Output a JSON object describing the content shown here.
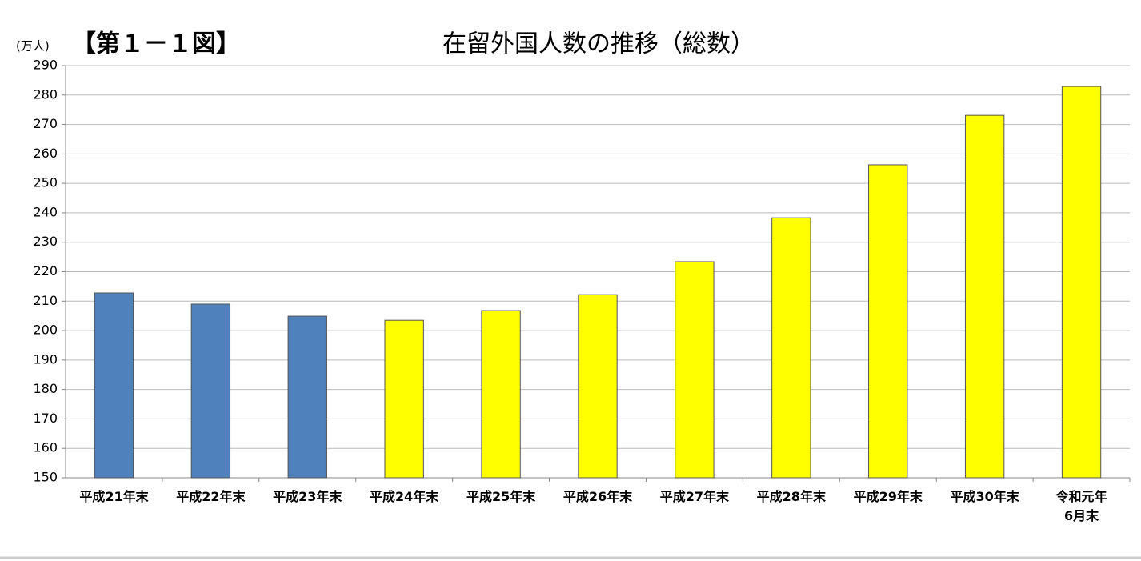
{
  "chart_data": {
    "type": "bar",
    "figure_label": "【第１－１図】",
    "title": "在留外国人数の推移（総数）",
    "y_unit": "(万人)",
    "categories": [
      "平成21年末",
      "平成22年末",
      "平成23年末",
      "平成24年末",
      "平成25年末",
      "平成26年末",
      "平成27年末",
      "平成28年末",
      "平成29年末",
      "平成30年末",
      "令和元年\n6月末"
    ],
    "values": [
      212.8,
      209.0,
      204.9,
      203.5,
      206.8,
      212.2,
      223.4,
      238.3,
      256.3,
      273.1,
      282.9
    ],
    "colors": [
      "#4f81bd",
      "#4f81bd",
      "#4f81bd",
      "#ffff00",
      "#ffff00",
      "#ffff00",
      "#ffff00",
      "#ffff00",
      "#ffff00",
      "#ffff00",
      "#ffff00"
    ],
    "ylim": [
      150,
      290
    ],
    "yticks": [
      150,
      160,
      170,
      180,
      190,
      200,
      210,
      220,
      230,
      240,
      250,
      260,
      270,
      280,
      290
    ],
    "grid": true
  }
}
